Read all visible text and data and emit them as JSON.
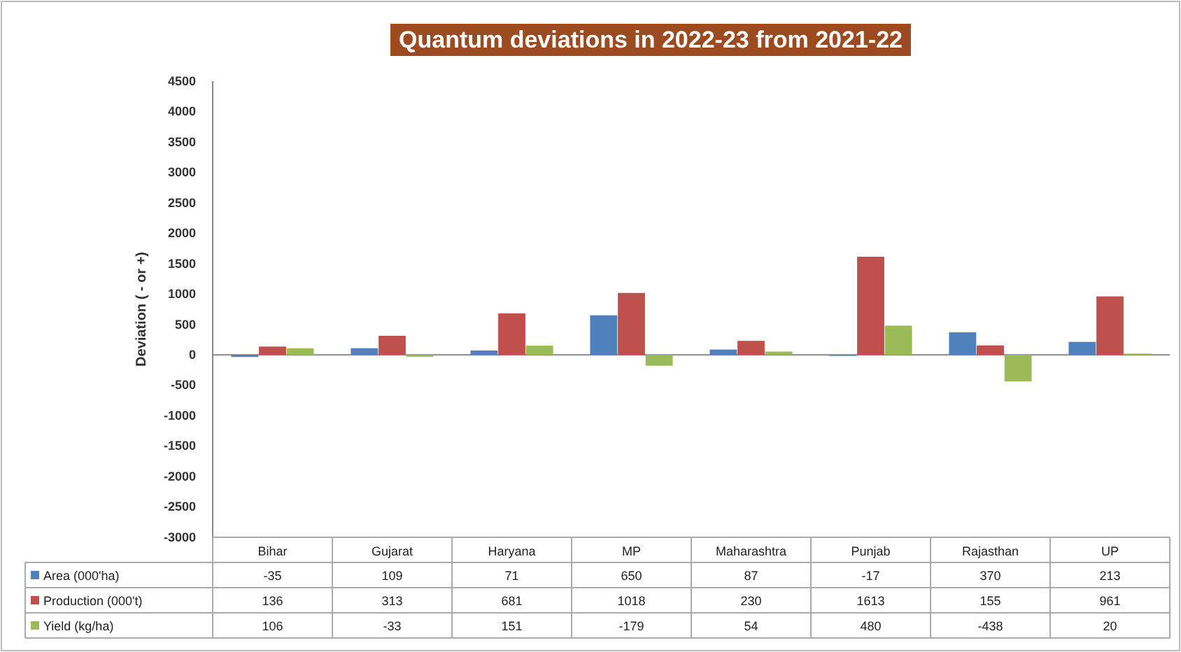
{
  "chart_data": {
    "type": "bar",
    "title": "Quantum deviations in 2022-23 from 2021-22",
    "ylabel": "Deviation ( - or +)",
    "categories": [
      "Bihar",
      "Gujarat",
      "Haryana",
      "MP",
      "Maharashtra",
      "Punjab",
      "Rajasthan",
      "UP"
    ],
    "series": [
      {
        "name": "Area (000'ha)",
        "color": "#4f81bd",
        "values": [
          -35,
          109,
          71,
          650,
          87,
          -17,
          370,
          213
        ]
      },
      {
        "name": "Production (000't)",
        "color": "#c0504d",
        "values": [
          136,
          313,
          681,
          1018,
          230,
          1613,
          155,
          961
        ]
      },
      {
        "name": "Yield (kg/ha)",
        "color": "#9bbb59",
        "values": [
          106,
          -33,
          151,
          -179,
          54,
          480,
          -438,
          20
        ]
      }
    ],
    "ylim": [
      -3000,
      4500
    ],
    "yticks": [
      -3000,
      -2500,
      -2000,
      -1500,
      -1000,
      -500,
      0,
      500,
      1000,
      1500,
      2000,
      2500,
      3000,
      3500,
      4000,
      4500
    ],
    "data_labels": true,
    "legend": "bottom"
  }
}
